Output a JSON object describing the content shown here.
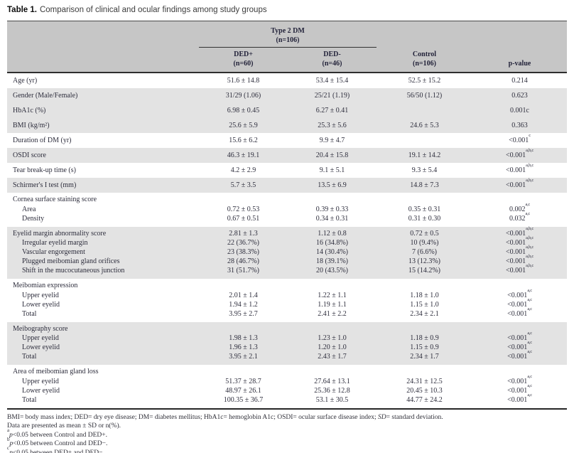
{
  "title": {
    "prefix": "Table 1.",
    "text": "Comparison of clinical and ocular findings among study groups"
  },
  "colors": {
    "header_bg": "#c6c6c6",
    "row_stripe": "#e3e3e3",
    "body_text": "#2d2d3c"
  },
  "table": {
    "header": {
      "group_label": "Type 2 DM",
      "group_n": "(n=106)",
      "ded_plus": {
        "label": "DED+",
        "n": "(n=60)"
      },
      "ded_minus": {
        "label": "DED-",
        "n": "(n=46)"
      },
      "control": {
        "label": "Control",
        "n": "(n=106)"
      },
      "pvalue_label": "p-value"
    },
    "rows": [
      {
        "label": "Age (yr)",
        "type": "single",
        "shade": false,
        "c1": "51.6 ± 14.8",
        "c2": "53.4 ± 15.4",
        "c3": "52.5 ± 15.2",
        "p": "0.214",
        "sup": ""
      },
      {
        "label": "Gender (Male/Female)",
        "type": "single",
        "shade": true,
        "c1": "31/29 (1.06)",
        "c2": "25/21 (1.19)",
        "c3": "56/50 (1.12)",
        "p": "0.623",
        "sup": ""
      },
      {
        "label": "HbA1c (%)",
        "type": "single",
        "shade": true,
        "c1": "6.98 ± 0.45",
        "c2": "6.27 ± 0.41",
        "c3": "",
        "p": "0.001c",
        "sup": ""
      },
      {
        "label": "BMI (kg/m²)",
        "type": "single",
        "shade": true,
        "c1": "25.6 ± 5.9",
        "c2": "25.3 ± 5.6",
        "c3": "24.6 ± 5.3",
        "p": "0.363",
        "sup": ""
      },
      {
        "label": "Duration of DM (yr)",
        "type": "single",
        "shade": false,
        "c1": "15.6 ± 6.2",
        "c2": "9.9 ± 4.7",
        "c3": "",
        "p": "<0.001",
        "sup": "c"
      },
      {
        "label": "OSDI score",
        "type": "single",
        "shade": true,
        "c1": "46.3 ± 19.1",
        "c2": "20.4 ± 15.8",
        "c3": "19.1 ± 14.2",
        "p": "<0.001",
        "sup": "a,b,c"
      },
      {
        "label": "Tear break-up time (s)",
        "type": "single",
        "shade": false,
        "c1": "4.2 ± 2.9",
        "c2": "9.1 ± 5.1",
        "c3": "9.3 ± 5.4",
        "p": "<0.001",
        "sup": "a,b,c"
      },
      {
        "label": "Schirmer's I test (mm)",
        "type": "single",
        "shade": true,
        "c1": "5.7 ± 3.5",
        "c2": "13.5 ± 6.9",
        "c3": "14.8 ± 7.3",
        "p": "<0.001",
        "sup": "a,b,c"
      },
      {
        "label": "Cornea surface staining score",
        "type": "section",
        "shade": false,
        "c1": "",
        "c2": "",
        "c3": "",
        "p": "",
        "sup": ""
      },
      {
        "label": "Area",
        "type": "sub",
        "shade": false,
        "c1": "0.72 ± 0.53",
        "c2": "0.39 ± 0.33",
        "c3": "0.35 ± 0.31",
        "p": "0.002",
        "sup": "a,c"
      },
      {
        "label": "Density",
        "type": "sub",
        "shade": false,
        "end": true,
        "c1": "0.67 ± 0.51",
        "c2": "0.34 ± 0.31",
        "c3": "0.31 ± 0.30",
        "p": "0.032",
        "sup": "a,c"
      },
      {
        "label": "Eyelid margin abnormality score",
        "type": "section",
        "shade": true,
        "c1": "2.81 ± 1.3",
        "c2": "1.12 ± 0.8",
        "c3": "0.72 ± 0.5",
        "p": "<0.001",
        "sup": "a,b,c"
      },
      {
        "label": "Irregular eyelid margin",
        "type": "sub",
        "shade": true,
        "c1": "22 (36.7%)",
        "c2": "16 (34.8%)",
        "c3": "10 (9.4%)",
        "p": "<0.001",
        "sup": "a,b,c"
      },
      {
        "label": "Vascular engorgement",
        "type": "sub",
        "shade": true,
        "c1": "23 (38.3%)",
        "c2": "14 (30.4%)",
        "c3": "7 (6.6%)",
        "p": "<0.001",
        "sup": "a,b,c"
      },
      {
        "label": "Plugged meibomian gland orifices",
        "type": "sub",
        "shade": true,
        "c1": "28 (46.7%)",
        "c2": "18 (39.1%)",
        "c3": "13 (12.3%)",
        "p": "<0.001",
        "sup": "a,b,c"
      },
      {
        "label": "Shift in the mucocutaneous junction",
        "type": "sub",
        "shade": true,
        "end": true,
        "c1": "31 (51.7%)",
        "c2": "20 (43.5%)",
        "c3": "15 (14.2%)",
        "p": "<0.001",
        "sup": "a,b,c"
      },
      {
        "label": "Meibomian expression",
        "type": "section",
        "shade": false,
        "c1": "",
        "c2": "",
        "c3": "",
        "p": "",
        "sup": ""
      },
      {
        "label": "Upper eyelid",
        "type": "sub",
        "shade": false,
        "c1": "2.01 ± 1.4",
        "c2": "1.22 ± 1.1",
        "c3": "1.18 ± 1.0",
        "p": "<0.001",
        "sup": "a,c"
      },
      {
        "label": "Lower eyelid",
        "type": "sub",
        "shade": false,
        "c1": "1.94 ± 1.2",
        "c2": "1.19 ± 1.1",
        "c3": "1.15 ± 1.0",
        "p": "<0.001",
        "sup": "a,c"
      },
      {
        "label": "Total",
        "type": "sub",
        "shade": false,
        "end": true,
        "c1": "3.95 ± 2.7",
        "c2": "2.41 ± 2.2",
        "c3": "2.34 ± 2.1",
        "p": "<0.001",
        "sup": "a,c"
      },
      {
        "label": "Meibography score",
        "type": "section",
        "shade": true,
        "c1": "",
        "c2": "",
        "c3": "",
        "p": "",
        "sup": ""
      },
      {
        "label": "Upper eyelid",
        "type": "sub",
        "shade": true,
        "c1": "1.98 ± 1.3",
        "c2": "1.23 ± 1.0",
        "c3": "1.18 ± 0.9",
        "p": "<0.001",
        "sup": "a,c"
      },
      {
        "label": "Lower eyelid",
        "type": "sub",
        "shade": true,
        "c1": "1.96 ± 1.3",
        "c2": "1.20 ± 1.0",
        "c3": "1.15 ± 0.9",
        "p": "<0.001",
        "sup": "a,c"
      },
      {
        "label": "Total",
        "type": "sub",
        "shade": true,
        "end": true,
        "c1": "3.95 ± 2.1",
        "c2": "2.43 ± 1.7",
        "c3": "2.34 ± 1.7",
        "p": "<0.001",
        "sup": "a,c"
      },
      {
        "label": "Area of meibomian gland loss",
        "type": "section",
        "shade": false,
        "c1": "",
        "c2": "",
        "c3": "",
        "p": "",
        "sup": ""
      },
      {
        "label": "Upper eyelid",
        "type": "sub",
        "shade": false,
        "c1": "51.37 ± 28.7",
        "c2": "27.64 ± 13.1",
        "c3": "24.31 ± 12.5",
        "p": "<0.001",
        "sup": "a,c"
      },
      {
        "label": "Lower eyelid",
        "type": "sub",
        "shade": false,
        "c1": "48.97 ± 26.1",
        "c2": "25.36 ± 12.8",
        "c3": "20.45 ± 10.3",
        "p": "<0.001",
        "sup": "a,c"
      },
      {
        "label": "Total",
        "type": "sub",
        "shade": false,
        "end": true,
        "c1": "100.35 ± 36.7",
        "c2": "53.1 ± 30.5",
        "c3": "44.77 ± 24.2",
        "p": "<0.001",
        "sup": "a,c"
      }
    ],
    "footnotes": [
      {
        "segments": [
          {
            "t": "BMI= body mass index; DED= dry eye disease; DM= diabetes mellitus; HbA1c= hemoglobin A1c; OSDI= ocular surface disease index; "
          },
          {
            "t": "SD",
            "i": true
          },
          {
            "t": "= standard deviation."
          }
        ]
      },
      {
        "segments": [
          {
            "t": "Data are presented as mean ± SD or n(%)."
          }
        ]
      },
      {
        "segments": [
          {
            "t": "a",
            "sup": true
          },
          {
            "t": "p",
            "i": true
          },
          {
            "t": "<0.05 between Control and DED+."
          }
        ]
      },
      {
        "segments": [
          {
            "t": "b",
            "sup": true
          },
          {
            "t": "p",
            "i": true
          },
          {
            "t": "<0.05 between Control and DED−."
          }
        ]
      },
      {
        "segments": [
          {
            "t": "c",
            "sup": true
          },
          {
            "t": "p",
            "i": true
          },
          {
            "t": "<0.05 between DED+ and DED−."
          }
        ]
      }
    ]
  }
}
